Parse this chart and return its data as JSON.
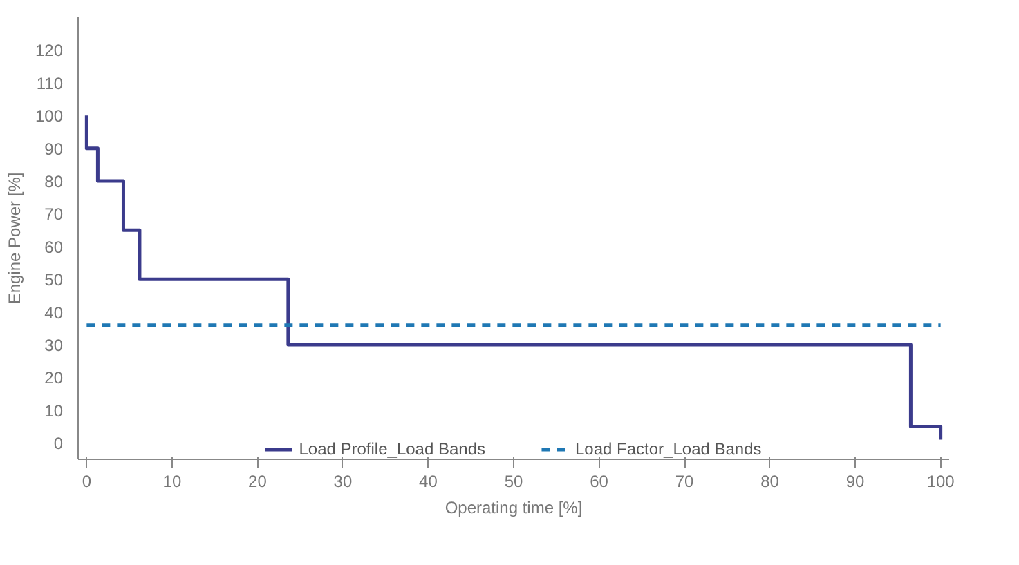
{
  "chart_data": {
    "type": "line",
    "xlabel": "Operating time [%]",
    "ylabel": "Engine Power [%]",
    "xlim": [
      -1,
      101
    ],
    "xticks": [
      0,
      10,
      20,
      30,
      40,
      50,
      60,
      70,
      80,
      90,
      100
    ],
    "ylim": [
      -5,
      130
    ],
    "yticks": [
      0,
      10,
      20,
      30,
      40,
      50,
      60,
      70,
      80,
      90,
      100,
      110,
      120
    ],
    "grid": false,
    "legend": "bottom",
    "marker": "none",
    "series": [
      {
        "name": "Load Profile_Load Bands",
        "color": "#3b3b8c",
        "line_style": "solid",
        "x": [
          0,
          0,
          1.3,
          1.3,
          4.3,
          4.3,
          6.2,
          6.2,
          23.6,
          23.6,
          96.5,
          96.5,
          100,
          100
        ],
        "values": [
          100,
          90,
          90,
          80,
          80,
          65,
          65,
          50,
          50,
          30,
          30,
          5,
          5,
          1
        ]
      },
      {
        "name": "Load Factor_Load Bands",
        "color": "#1f78b4",
        "line_style": "dashed",
        "x": [
          0,
          100
        ],
        "values": [
          36,
          36
        ]
      }
    ]
  }
}
